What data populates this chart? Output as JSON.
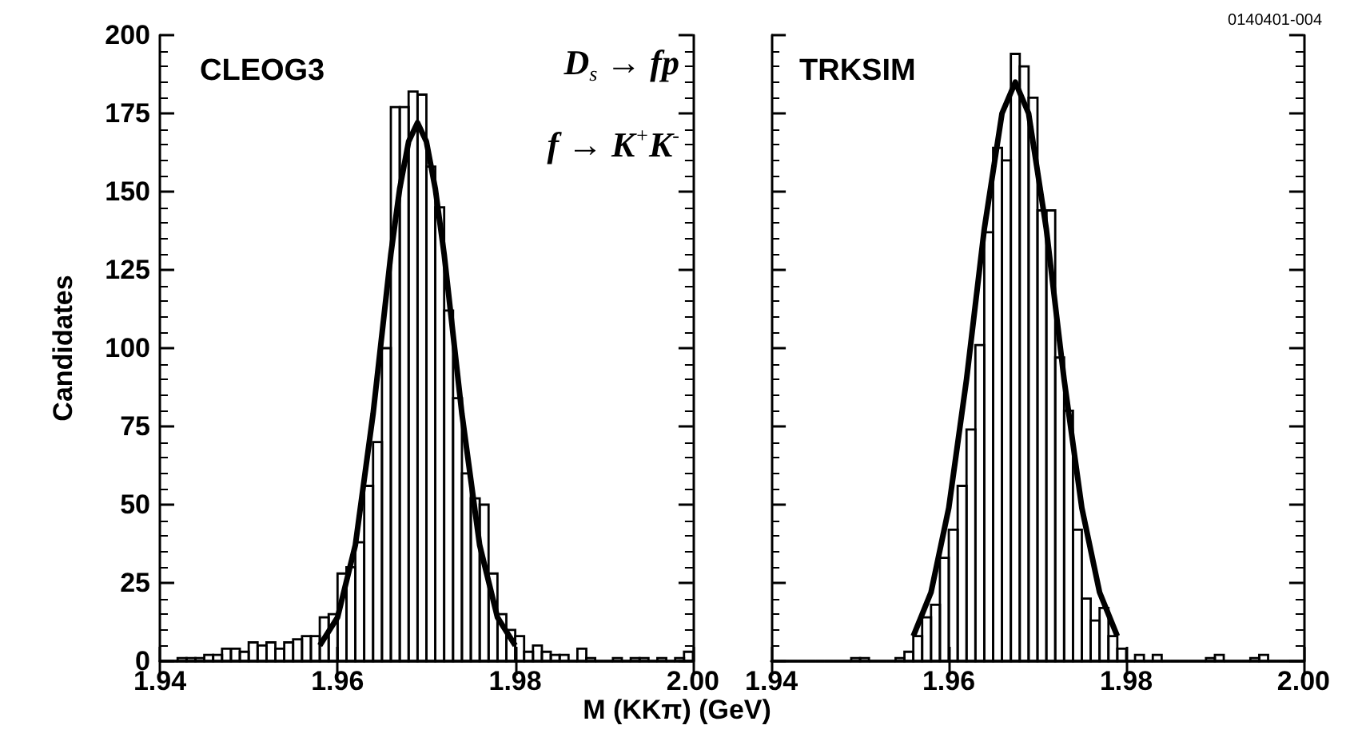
{
  "chart_data": [
    {
      "type": "histogram",
      "title": "CLEOG3",
      "ylabel": "Candidates",
      "xlabel": "M (KKπ) (GeV)",
      "annotations": [
        "D$_{s}$ → fp",
        "f → K$^{+}$K$^{-}$"
      ],
      "bins": [
        1.94,
        1.941,
        1.942,
        1.943,
        1.944,
        1.945,
        1.946,
        1.947,
        1.948,
        1.949,
        1.95,
        1.951,
        1.952,
        1.953,
        1.954,
        1.955,
        1.956,
        1.957,
        1.958,
        1.959,
        1.96,
        1.961,
        1.962,
        1.963,
        1.964,
        1.965,
        1.966,
        1.967,
        1.968,
        1.969,
        1.97,
        1.971,
        1.972,
        1.973,
        1.974,
        1.975,
        1.976,
        1.977,
        1.978,
        1.979,
        1.98,
        1.981,
        1.982,
        1.983,
        1.984,
        1.985,
        1.986,
        1.987,
        1.988,
        1.989,
        1.99,
        1.991,
        1.992,
        1.993,
        1.994,
        1.995,
        1.996,
        1.997,
        1.998,
        1.999,
        2.0
      ],
      "series": [
        {
          "color": "#000000",
          "values": [
            0,
            0,
            1,
            1,
            1,
            2,
            2,
            4,
            4,
            3,
            6,
            5,
            6,
            4,
            6,
            7,
            8,
            8,
            14,
            15,
            28,
            30,
            38,
            56,
            70,
            100,
            177,
            177,
            182,
            181,
            158,
            145,
            112,
            84,
            60,
            52,
            50,
            28,
            15,
            10,
            8,
            3,
            5,
            3,
            2,
            2,
            0,
            4,
            1,
            0,
            0,
            1,
            0,
            1,
            1,
            0,
            1,
            0,
            1,
            3
          ]
        },
        {
          "type": "line",
          "color": "#000000",
          "x": [
            1.958,
            1.96,
            1.962,
            1.964,
            1.966,
            1.967,
            1.968,
            1.969,
            1.97,
            1.971,
            1.972,
            1.974,
            1.976,
            1.978,
            1.98
          ],
          "values": [
            5,
            14,
            37,
            79,
            130,
            151,
            166,
            172,
            166,
            151,
            130,
            79,
            37,
            14,
            5
          ]
        }
      ],
      "xlim": [
        1.94,
        2.0
      ],
      "xticks": [
        {
          "value": 1.94,
          "label": "1.94"
        },
        {
          "value": 1.96,
          "label": "1.96"
        },
        {
          "value": 1.98,
          "label": "1.98"
        },
        {
          "value": 2.0,
          "label": "2.00"
        }
      ],
      "ylim": [
        0,
        200
      ],
      "yticks": [
        0,
        25,
        50,
        75,
        100,
        125,
        150,
        175,
        200
      ],
      "grid": false
    },
    {
      "type": "histogram",
      "title": "TRKSIM",
      "annotations": [
        "0140401-004"
      ],
      "bins": [
        1.94,
        1.941,
        1.942,
        1.943,
        1.944,
        1.945,
        1.946,
        1.947,
        1.948,
        1.949,
        1.95,
        1.951,
        1.952,
        1.953,
        1.954,
        1.955,
        1.956,
        1.957,
        1.958,
        1.959,
        1.96,
        1.961,
        1.962,
        1.963,
        1.964,
        1.965,
        1.966,
        1.967,
        1.968,
        1.969,
        1.97,
        1.971,
        1.972,
        1.973,
        1.974,
        1.975,
        1.976,
        1.977,
        1.978,
        1.979,
        1.98,
        1.981,
        1.982,
        1.983,
        1.984,
        1.985,
        1.986,
        1.987,
        1.988,
        1.989,
        1.99,
        1.991,
        1.992,
        1.993,
        1.994,
        1.995,
        1.996,
        1.997,
        1.998,
        1.999,
        2.0
      ],
      "series": [
        {
          "color": "#000000",
          "values": [
            0,
            0,
            0,
            0,
            0,
            0,
            0,
            0,
            0,
            1,
            1,
            0,
            0,
            0,
            1,
            3,
            8,
            14,
            18,
            33,
            42,
            56,
            74,
            101,
            137,
            164,
            160,
            194,
            190,
            180,
            144,
            144,
            97,
            80,
            42,
            20,
            13,
            17,
            8,
            4,
            0,
            2,
            0,
            2,
            0,
            0,
            0,
            0,
            0,
            1,
            2,
            0,
            0,
            0,
            1,
            2,
            0,
            0,
            0,
            0
          ]
        },
        {
          "type": "line",
          "color": "#000000",
          "x": [
            1.956,
            1.958,
            1.96,
            1.962,
            1.964,
            1.966,
            1.9675,
            1.969,
            1.971,
            1.973,
            1.975,
            1.977,
            1.979
          ],
          "values": [
            8,
            22,
            49,
            90,
            138,
            175,
            185,
            175,
            138,
            90,
            49,
            22,
            8
          ]
        }
      ],
      "xlim": [
        1.94,
        2.0
      ],
      "xticks": [
        {
          "value": 1.94,
          "label": "1.94"
        },
        {
          "value": 1.96,
          "label": "1.96"
        },
        {
          "value": 1.98,
          "label": "1.98"
        },
        {
          "value": 2.0,
          "label": "2.00"
        }
      ],
      "ylim": [
        0,
        200
      ],
      "yticks": [
        0,
        25,
        50,
        75,
        100,
        125,
        150,
        175,
        200
      ],
      "tick_labels": "x",
      "grid": false
    }
  ]
}
